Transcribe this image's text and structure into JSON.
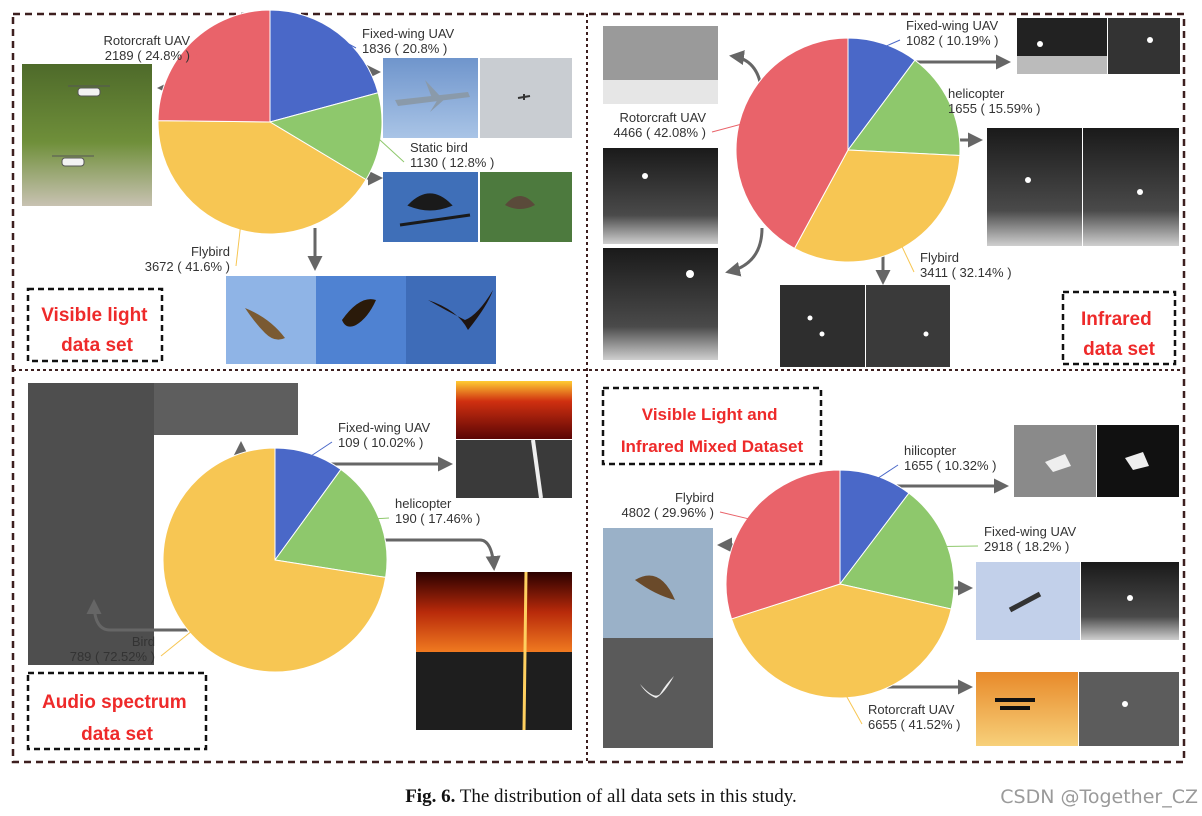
{
  "caption": {
    "fig": "Fig. 6.",
    "text": "The distribution of all data sets in this study."
  },
  "watermark": "CSDN @Together_CZ",
  "colors": {
    "red": "#e9636a",
    "blue": "#4a68c8",
    "green": "#8ec86c",
    "yellow": "#f7c653",
    "border": "#3d1f1f",
    "label_red": "#ee2a2a"
  },
  "chart_data": [
    {
      "type": "pie",
      "dataset_label": [
        "Visible light",
        "data set"
      ],
      "slices": [
        {
          "name": "Fixed-wing UAV",
          "value": 1836,
          "label": "1836 ( 20.8% )",
          "color": "#4a68c8"
        },
        {
          "name": "Static bird",
          "value": 1130,
          "label": "1130 ( 12.8% )",
          "color": "#8ec86c"
        },
        {
          "name": "Flybird",
          "value": 3672,
          "label": "3672 ( 41.6% )",
          "color": "#f7c653"
        },
        {
          "name": "Rotorcraft UAV",
          "value": 2189,
          "label": "2189 ( 24.8% )",
          "color": "#e9636a"
        }
      ]
    },
    {
      "type": "pie",
      "dataset_label": [
        "Infrared",
        "data set"
      ],
      "slices": [
        {
          "name": "Fixed-wing UAV",
          "value": 1082,
          "label": "1082 ( 10.19% )",
          "color": "#4a68c8"
        },
        {
          "name": "helicopter",
          "value": 1655,
          "label": "1655 ( 15.59% )",
          "color": "#8ec86c"
        },
        {
          "name": "Flybird",
          "value": 3411,
          "label": "3411 ( 32.14% )",
          "color": "#f7c653"
        },
        {
          "name": "Rotorcraft UAV",
          "value": 4466,
          "label": "4466 ( 42.08% )",
          "color": "#e9636a"
        }
      ]
    },
    {
      "type": "pie",
      "dataset_label": [
        "Audio spectrum",
        "data set"
      ],
      "slices": [
        {
          "name": "Fixed-wing UAV",
          "value": 109,
          "label": "109 ( 10.02% )",
          "color": "#4a68c8"
        },
        {
          "name": "helicopter",
          "value": 190,
          "label": "190 ( 17.46% )",
          "color": "#8ec86c"
        },
        {
          "name": "Bird",
          "value": 789,
          "label": "789 ( 72.52% )",
          "color": "#f7c653"
        }
      ]
    },
    {
      "type": "pie",
      "dataset_label": [
        "Visible Light and",
        "Infrared Mixed Dataset"
      ],
      "slices": [
        {
          "name": "hilicopter",
          "value": 1655,
          "label": "1655 ( 10.32% )",
          "color": "#4a68c8"
        },
        {
          "name": "Fixed-wing UAV",
          "value": 2918,
          "label": "2918 ( 18.2% )",
          "color": "#8ec86c"
        },
        {
          "name": "Rotorcraft UAV",
          "value": 6655,
          "label": "6655 ( 41.52% )",
          "color": "#f7c653"
        },
        {
          "name": "Flybird",
          "value": 4802,
          "label": "4802 ( 29.96% )",
          "color": "#e9636a"
        }
      ]
    }
  ]
}
